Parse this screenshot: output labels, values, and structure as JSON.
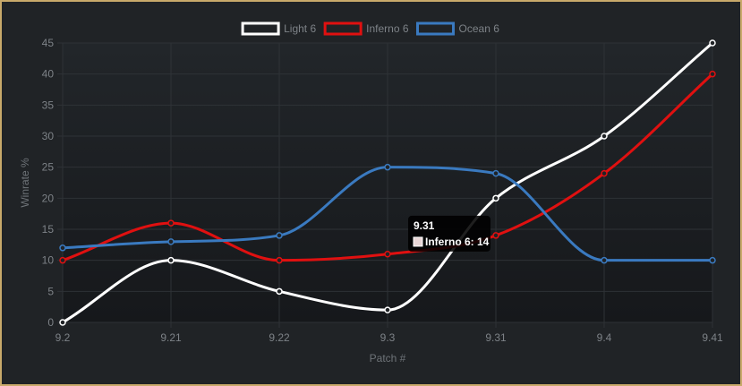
{
  "chart_data": {
    "type": "line",
    "categories": [
      "9.2",
      "9.21",
      "9.22",
      "9.3",
      "9.31",
      "9.4",
      "9.41"
    ],
    "series": [
      {
        "name": "Light 6",
        "color": "#ffffff",
        "values": [
          0,
          10,
          5,
          2,
          20,
          30,
          45
        ]
      },
      {
        "name": "Inferno 6",
        "color": "#e01010",
        "values": [
          10,
          16,
          10,
          11,
          14,
          24,
          40
        ]
      },
      {
        "name": "Ocean 6",
        "color": "#3a7ac0",
        "values": [
          12,
          13,
          14,
          25,
          24,
          10,
          10
        ]
      }
    ],
    "xlabel": "Patch #",
    "ylabel": "Winrate %",
    "ylim": [
      0,
      45
    ],
    "yticks": [
      0,
      5,
      10,
      15,
      20,
      25,
      30,
      35,
      40,
      45
    ],
    "grid": true,
    "legend_position": "top-center",
    "tooltip": {
      "title": "9.31",
      "series": "Inferno 6",
      "value": 14,
      "label": "Inferno 6: 14",
      "swatch_color": "#e8d6d6"
    }
  },
  "theme": {
    "background": "#202326",
    "border": "#c8a96a",
    "grid": "#2e3236",
    "tick_text": "#7d8287"
  }
}
